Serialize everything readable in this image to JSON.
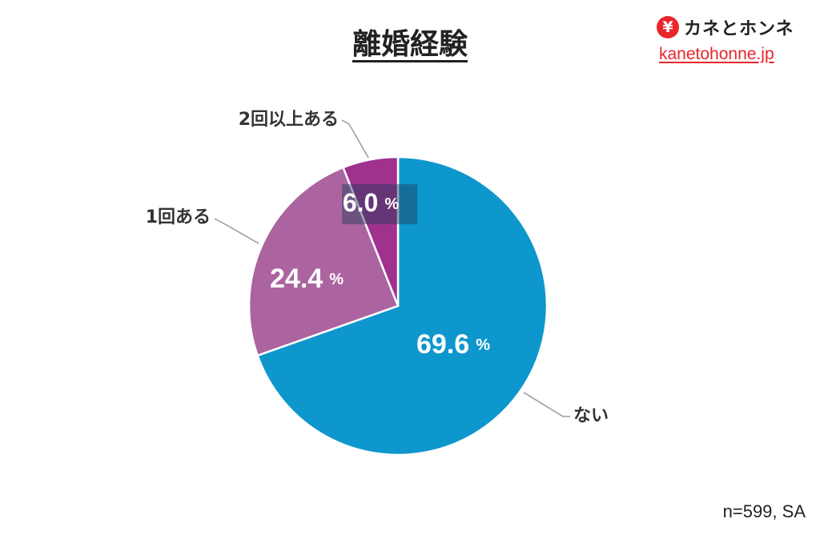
{
  "title": "離婚経験",
  "brand": {
    "icon": "yen-icon",
    "name": "カネとホンネ",
    "url": "kanetohonne.jp",
    "accent_color": "#e8262b"
  },
  "note": "n=599, SA",
  "chart_data": {
    "type": "pie",
    "title": "離婚経験",
    "unit": "%",
    "categories": [
      "ない",
      "1回ある",
      "2回以上ある"
    ],
    "values": [
      69.6,
      24.4,
      6.0
    ],
    "value_labels": [
      "69.6",
      "24.4",
      "6.0"
    ],
    "colors": [
      "#0e97cc",
      "#ab64a0",
      "#a0318f"
    ],
    "start": "12 o'clock, clockwise",
    "legend": "none (category labels outside slices with leader lines)"
  }
}
